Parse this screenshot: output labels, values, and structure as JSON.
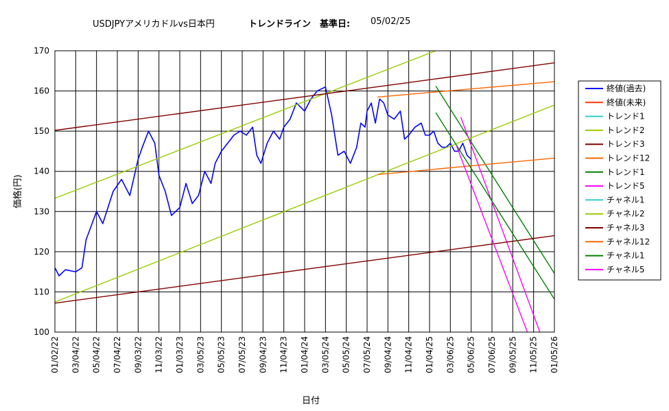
{
  "title": {
    "part1": "USDJPYアメリカドルvs日本円",
    "part2": "トレンドライン　基準日:",
    "part3": "05/02/25"
  },
  "chart_data": {
    "type": "line",
    "xlabel": "日付",
    "ylabel": "価格(円)",
    "ylim": [
      100,
      170
    ],
    "y_ticks": [
      100,
      110,
      120,
      130,
      140,
      150,
      160,
      170
    ],
    "x_ticks": [
      "01/02/22",
      "03/04/22",
      "05/04/22",
      "07/04/22",
      "09/03/22",
      "11/03/22",
      "01/03/23",
      "03/05/23",
      "05/05/23",
      "07/05/23",
      "09/04/23",
      "11/04/23",
      "01/04/24",
      "03/05/24",
      "05/05/24",
      "07/05/24",
      "09/04/24",
      "11/04/24",
      "01/04/25",
      "03/06/25",
      "05/06/25",
      "07/06/25",
      "09/05/25",
      "11/05/25",
      "01/05/26"
    ],
    "grid": true,
    "legend_position": "right",
    "series": [
      {
        "name": "終値(過去)",
        "color": "#0000ff",
        "width": 1.6,
        "x": [
          0,
          0.2,
          0.5,
          1,
          1.3,
          1.5,
          2,
          2.3,
          2.8,
          3.2,
          3.6,
          4,
          4.2,
          4.5,
          4.8,
          5,
          5.3,
          5.6,
          6,
          6.3,
          6.6,
          6.9,
          7.2,
          7.5,
          7.7,
          8,
          8.3,
          8.6,
          8.9,
          9.2,
          9.5,
          9.7,
          9.9,
          10.2,
          10.5,
          10.8,
          11,
          11.3,
          11.6,
          12,
          12.3,
          12.6,
          13,
          13.3,
          13.6,
          13.9,
          14.2,
          14.5,
          14.7,
          14.9,
          15,
          15.2,
          15.4,
          15.6,
          15.8,
          16,
          16.3,
          16.6,
          16.8,
          17,
          17.3,
          17.6,
          17.8,
          18,
          18.2,
          18.4,
          18.6,
          18.8,
          19,
          19.2,
          19.4,
          19.6,
          19.8,
          20
        ],
        "y": [
          116,
          114,
          115.5,
          115,
          116,
          123,
          130,
          127,
          135,
          138,
          134,
          143,
          146,
          150,
          147,
          139,
          135,
          129,
          131,
          137,
          132,
          134,
          140,
          137,
          142,
          145,
          147,
          149,
          150,
          149,
          151,
          144,
          142,
          147,
          150,
          148,
          151,
          153,
          157,
          155,
          158,
          160,
          161,
          154,
          144,
          145,
          142,
          146,
          152,
          151,
          155,
          157,
          152,
          158,
          157,
          154,
          153,
          155,
          148,
          149,
          151,
          152,
          149,
          149,
          150,
          147,
          146,
          146,
          147,
          145,
          145,
          147,
          144,
          143
        ]
      },
      {
        "name": "終値(未来)",
        "color": "#ff3300",
        "width": 1.4,
        "x": [],
        "y": []
      },
      {
        "name": "トレンド1",
        "color": "#33cccc",
        "width": 1.4,
        "x": [],
        "y": []
      },
      {
        "name": "トレンド2",
        "color": "#99cc00",
        "width": 1.4,
        "x": [
          0,
          18.3
        ],
        "y": [
          133.3,
          170
        ]
      },
      {
        "name": "トレンド3",
        "color": "#800000",
        "width": 1.4,
        "x": [
          0,
          24
        ],
        "y": [
          150.2,
          167
        ]
      },
      {
        "name": "トレンド12",
        "color": "#ff6600",
        "width": 1.4,
        "x": [
          15.5,
          24
        ],
        "y": [
          158.5,
          162.3
        ]
      },
      {
        "name": "トレンド1",
        "color": "#008000",
        "width": 1.4,
        "x": [
          18.3,
          24
        ],
        "y": [
          161.2,
          114.6
        ]
      },
      {
        "name": "トレンド5",
        "color": "#ff00ff",
        "width": 1.4,
        "x": [
          19.5,
          23.3
        ],
        "y": [
          153.5,
          100
        ]
      },
      {
        "name": "チャネル1",
        "color": "#33cccc",
        "width": 1.4,
        "x": [],
        "y": []
      },
      {
        "name": "チャネル2",
        "color": "#99cc00",
        "width": 1.4,
        "x": [
          0,
          24
        ],
        "y": [
          107.5,
          156.5
        ]
      },
      {
        "name": "チャネル3",
        "color": "#800000",
        "width": 1.4,
        "x": [
          0,
          24
        ],
        "y": [
          107.2,
          124
        ]
      },
      {
        "name": "チャネル12",
        "color": "#ff6600",
        "width": 1.4,
        "x": [
          15.5,
          24
        ],
        "y": [
          139.2,
          143.3
        ]
      },
      {
        "name": "チャネル1",
        "color": "#008000",
        "width": 1.4,
        "x": [
          18.3,
          24
        ],
        "y": [
          154.6,
          108.2
        ]
      },
      {
        "name": "チャネル5",
        "color": "#ff00ff",
        "width": 1.4,
        "x": [
          19.3,
          22.7
        ],
        "y": [
          146.3,
          100
        ]
      }
    ]
  }
}
